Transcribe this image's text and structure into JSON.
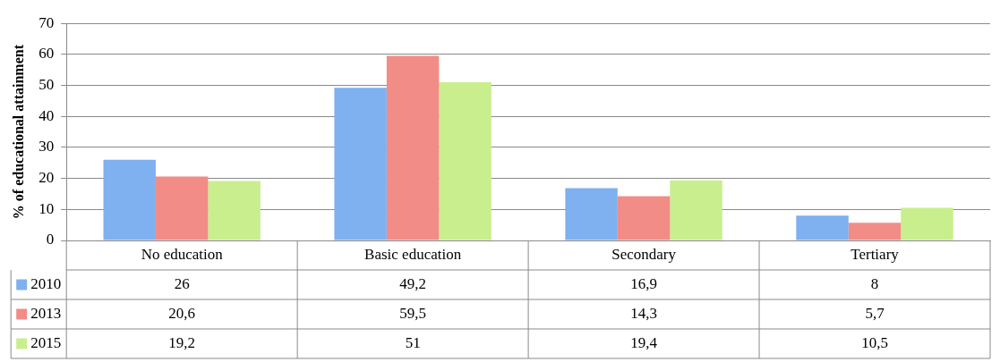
{
  "chart_data": {
    "type": "bar",
    "ylabel": "% of educational attainment",
    "categories": [
      "No education",
      "Basic education",
      "Secondary",
      "Tertiary"
    ],
    "series": [
      {
        "name": "2010",
        "color": "#7fb0f0",
        "values": [
          26,
          49.2,
          16.9,
          8
        ],
        "value_labels": [
          "26",
          "49,2",
          "16,9",
          "8"
        ]
      },
      {
        "name": "2013",
        "color": "#f28c86",
        "values": [
          20.6,
          59.5,
          14.3,
          5.7
        ],
        "value_labels": [
          "20,6",
          "59,5",
          "14,3",
          "5,7"
        ]
      },
      {
        "name": "2015",
        "color": "#c9ee8e",
        "values": [
          19.2,
          51,
          19.4,
          10.5
        ],
        "value_labels": [
          "19,2",
          "51",
          "19,4",
          "10,5"
        ]
      }
    ],
    "ylim": [
      0,
      70
    ],
    "yticks": [
      0,
      10,
      20,
      30,
      40,
      50,
      60,
      70
    ],
    "grid": "y",
    "legend": "bottom left"
  }
}
